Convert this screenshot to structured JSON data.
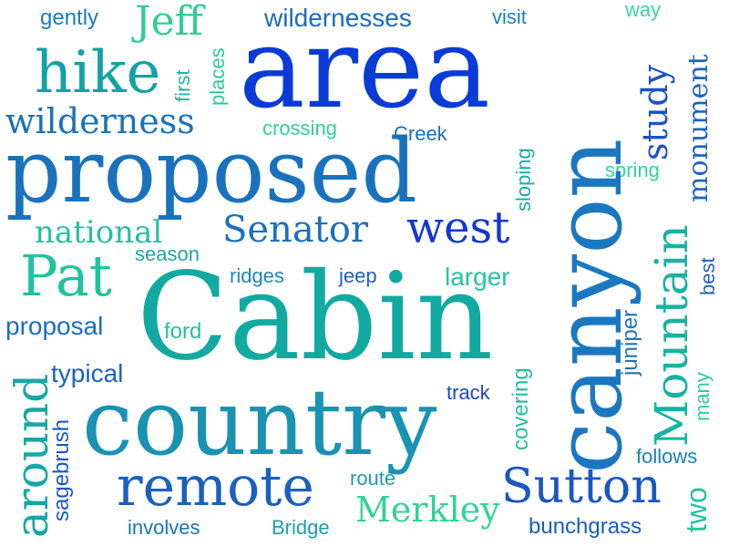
{
  "palette": {
    "deep_blue": "#0a3bd6",
    "blue": "#1a5fc4",
    "mid_blue": "#1b7ab8",
    "teal_blue": "#1290b0",
    "teal": "#12a6a2",
    "green_teal": "#16bb9a",
    "mint": "#2fd29a"
  },
  "words": [
    {
      "text": "area",
      "color": "#0a3bd6"
    },
    {
      "text": "canyon",
      "color": "#1b78c0"
    },
    {
      "text": "Cabin",
      "color": "#12aaa0"
    },
    {
      "text": "proposed",
      "color": "#1a72bd"
    },
    {
      "text": "country",
      "color": "#1a92b2"
    },
    {
      "text": "remote",
      "color": "#1a60be"
    },
    {
      "text": "hike",
      "color": "#13a2a6"
    },
    {
      "text": "wilderness",
      "color": "#1872b8"
    },
    {
      "text": "Jeff",
      "color": "#2fce96"
    },
    {
      "text": "Pat",
      "color": "#20c39e"
    },
    {
      "text": "Senator",
      "color": "#1a6fc1"
    },
    {
      "text": "west",
      "color": "#1437cf"
    },
    {
      "text": "Sutton",
      "color": "#1a57c0"
    },
    {
      "text": "Merkley",
      "color": "#30d394"
    },
    {
      "text": "Mountain",
      "color": "#17b3a0"
    },
    {
      "text": "around",
      "color": "#17a7a7"
    },
    {
      "text": "study",
      "color": "#1a52c5"
    },
    {
      "text": "monument",
      "color": "#1c63c2"
    },
    {
      "text": "national",
      "color": "#24c19a"
    },
    {
      "text": "gently",
      "color": "#1a7bbd"
    },
    {
      "text": "wildernesses",
      "color": "#1a6bbe"
    },
    {
      "text": "visit",
      "color": "#1a82b8"
    },
    {
      "text": "way",
      "color": "#35d99a"
    },
    {
      "text": "first",
      "color": "#1fb6a0"
    },
    {
      "text": "places",
      "color": "#29c99b"
    },
    {
      "text": "crossing",
      "color": "#2fcf97"
    },
    {
      "text": "Creek",
      "color": "#1a71be"
    },
    {
      "text": "sloping",
      "color": "#1aa8a5"
    },
    {
      "text": "spring",
      "color": "#35d499"
    },
    {
      "text": "season",
      "color": "#1fa6a7"
    },
    {
      "text": "ridges",
      "color": "#1a89b5"
    },
    {
      "text": "jeep",
      "color": "#1a60c0"
    },
    {
      "text": "larger",
      "color": "#26c59b"
    },
    {
      "text": "best",
      "color": "#1a62be"
    },
    {
      "text": "proposal",
      "color": "#1a6dbf"
    },
    {
      "text": "ford",
      "color": "#25c09c"
    },
    {
      "text": "typical",
      "color": "#1a62c0"
    },
    {
      "text": "track",
      "color": "#1a48c8"
    },
    {
      "text": "juniper",
      "color": "#1a75b8"
    },
    {
      "text": "covering",
      "color": "#22bf9e"
    },
    {
      "text": "many",
      "color": "#2fcc97"
    },
    {
      "text": "sagebrush",
      "color": "#1a58c2"
    },
    {
      "text": "route",
      "color": "#1a9ab0"
    },
    {
      "text": "follows",
      "color": "#1a82b8"
    },
    {
      "text": "two",
      "color": "#22c39c"
    },
    {
      "text": "involves",
      "color": "#1a73bb"
    },
    {
      "text": "Bridge",
      "color": "#1a9eb0"
    },
    {
      "text": "bunchgrass",
      "color": "#1a5cc2"
    }
  ]
}
